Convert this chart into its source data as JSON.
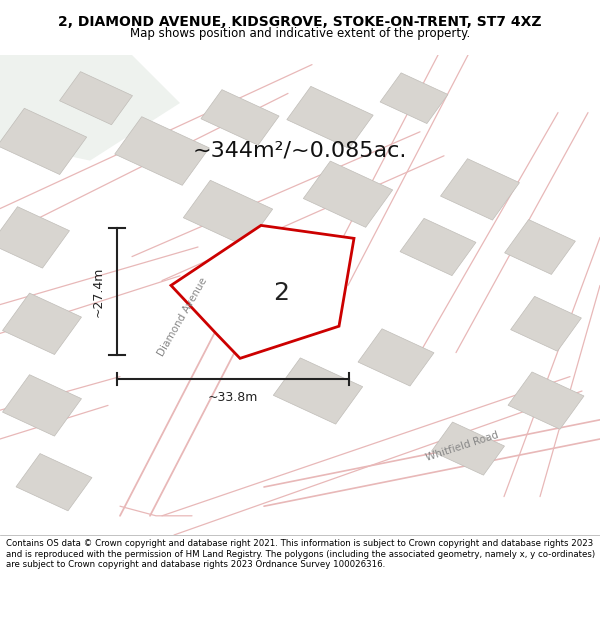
{
  "title_line1": "2, DIAMOND AVENUE, KIDSGROVE, STOKE-ON-TRENT, ST7 4XZ",
  "title_line2": "Map shows position and indicative extent of the property.",
  "area_text": "~344m²/~0.085ac.",
  "dim_height": "~27.4m",
  "dim_width": "~33.8m",
  "property_label": "2",
  "road_label1": "Diamond Avenue",
  "road_label2": "Whitfield Road",
  "footer_text": "Contains OS data © Crown copyright and database right 2021. This information is subject to Crown copyright and database rights 2023 and is reproduced with the permission of HM Land Registry. The polygons (including the associated geometry, namely x, y co-ordinates) are subject to Crown copyright and database rights 2023 Ordnance Survey 100026316.",
  "map_bg": "#f0eeea",
  "building_color": "#d8d5d0",
  "road_line_color": "#e8b8b8",
  "property_outline_color": "#cc0000",
  "dim_line_color": "#222222",
  "title_bg": "#ffffff",
  "footer_bg": "#ffffff"
}
